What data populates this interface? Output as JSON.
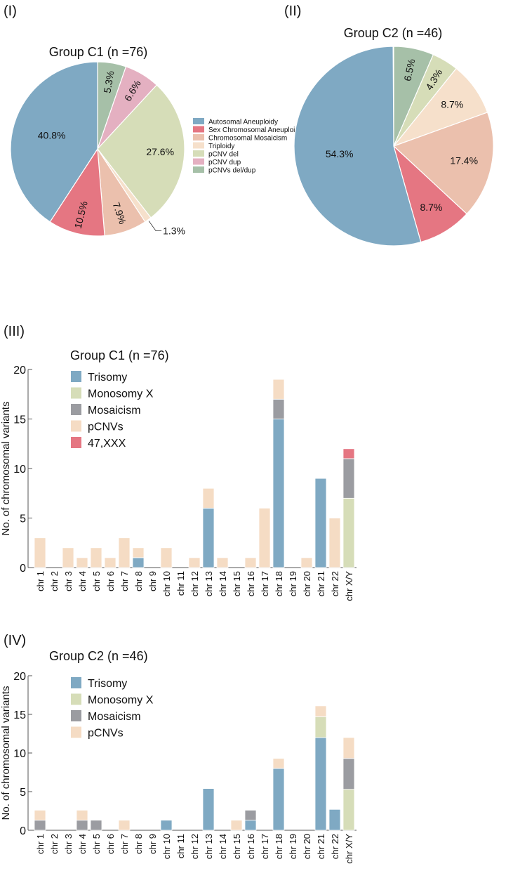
{
  "panel_labels": [
    "(I)",
    "(II)",
    "(III)",
    "(IV)"
  ],
  "colors": {
    "autosomal": "#7FA9C3",
    "sex": "#E57682",
    "mosaic_pie": "#EBC0AD",
    "triploidy": "#F6E0CB",
    "pcnv_del": "#D6DDB8",
    "pcnv_dup": "#E4B0C1",
    "pcnv_deldup": "#A6C0A8",
    "mosaic_bar": "#9B9CA1",
    "pcnv_bar": "#F5DCC4",
    "monox": "#D6DDB8",
    "xxx": "#E57682"
  },
  "chart_data": [
    {
      "type": "pie",
      "title": "Group C1 (n =76)",
      "slices": [
        {
          "label": "pCNVs del/dup",
          "value": 5.3,
          "text": "5.3%",
          "color": "#A6C0A8"
        },
        {
          "label": "pCNV dup",
          "value": 6.6,
          "text": "6.6%",
          "color": "#E4B0C1"
        },
        {
          "label": "pCNV del",
          "value": 27.6,
          "text": "27.6%",
          "color": "#D6DDB8"
        },
        {
          "label": "Triploidy",
          "value": 1.3,
          "text": "1.3%",
          "color": "#F6E0CB"
        },
        {
          "label": "Chromosomal Mosaicism",
          "value": 7.9,
          "text": "7.9%",
          "color": "#EBC0AD"
        },
        {
          "label": "Sex Chromosomal Aneuploidy",
          "value": 10.5,
          "text": "10.5%",
          "color": "#E57682"
        },
        {
          "label": "Autosomal Aneuploidy",
          "value": 40.8,
          "text": "40.8%",
          "color": "#7FA9C3"
        }
      ],
      "legend": [
        "Autosomal Aneuploidy",
        "Sex Chromosomal Aneuploidy",
        "Chromosomal Mosaicism",
        "Triploidy",
        "pCNV del",
        "pCNV dup",
        "pCNVs del/dup"
      ],
      "legend_colors": [
        "#7FA9C3",
        "#E57682",
        "#EBC0AD",
        "#F6E0CB",
        "#D6DDB8",
        "#E4B0C1",
        "#A6C0A8"
      ],
      "legend_position": "right"
    },
    {
      "type": "pie",
      "title": "Group C2 (n =46)",
      "slices": [
        {
          "label": "pCNVs del/dup",
          "value": 6.5,
          "text": "6.5%",
          "color": "#A6C0A8"
        },
        {
          "label": "pCNV del",
          "value": 4.3,
          "text": "4.3%",
          "color": "#D6DDB8"
        },
        {
          "label": "Triploidy",
          "value": 8.7,
          "text": "8.7%",
          "color": "#F6E0CB"
        },
        {
          "label": "Chromosomal Mosaicism",
          "value": 17.4,
          "text": "17.4%",
          "color": "#EBC0AD"
        },
        {
          "label": "Sex Chromosomal Aneuploidy",
          "value": 8.7,
          "text": "8.7%",
          "color": "#E57682"
        },
        {
          "label": "Autosomal Aneuploidy",
          "value": 54.3,
          "text": "54.3%",
          "color": "#7FA9C3"
        }
      ]
    },
    {
      "type": "bar",
      "stacked": true,
      "title": "Group C1 (n =76)",
      "ylabel": "No. of chromosomal variants",
      "ylim": [
        0,
        20
      ],
      "yticks": [
        0,
        5,
        10,
        15,
        20
      ],
      "categories": [
        "chr 1",
        "chr 2",
        "chr 3",
        "chr 4",
        "chr 5",
        "chr 6",
        "chr 7",
        "chr 8",
        "chr 9",
        "chr 10",
        "chr 11",
        "chr 12",
        "chr 13",
        "chr 14",
        "chr 15",
        "chr 16",
        "chr 17",
        "chr 18",
        "chr 19",
        "chr 20",
        "chr 21",
        "chr 22",
        "chr X/Y"
      ],
      "series": [
        {
          "name": "Trisomy",
          "color": "#7FA9C3",
          "values": [
            0,
            0,
            0,
            0,
            0,
            0,
            0,
            1,
            0,
            0,
            0,
            0,
            6,
            0,
            0,
            0,
            0,
            15,
            0,
            0,
            9,
            0,
            0
          ]
        },
        {
          "name": "Monosomy X",
          "color": "#D6DDB8",
          "values": [
            0,
            0,
            0,
            0,
            0,
            0,
            0,
            0,
            0,
            0,
            0,
            0,
            0,
            0,
            0,
            0,
            0,
            0,
            0,
            0,
            0,
            0,
            7
          ]
        },
        {
          "name": "Mosaicism",
          "color": "#9B9CA1",
          "values": [
            0,
            0,
            0,
            0,
            0,
            0,
            0,
            0,
            0,
            0,
            0,
            0,
            0,
            0,
            0,
            0,
            0,
            2,
            0,
            0,
            0,
            0,
            4
          ]
        },
        {
          "name": "pCNVs",
          "color": "#F5DCC4",
          "values": [
            3,
            0,
            2,
            1,
            2,
            1,
            3,
            1,
            0,
            2,
            0,
            1,
            2,
            1,
            0,
            1,
            6,
            2,
            0,
            1,
            0,
            5,
            0
          ]
        },
        {
          "name": "47,XXX",
          "color": "#E57682",
          "values": [
            0,
            0,
            0,
            0,
            0,
            0,
            0,
            0,
            0,
            0,
            0,
            0,
            0,
            0,
            0,
            0,
            0,
            0,
            0,
            0,
            0,
            0,
            1
          ]
        }
      ],
      "legend_position": "top-left"
    },
    {
      "type": "bar",
      "stacked": true,
      "title": "Group C2 (n =46)",
      "ylabel": "No. of chromosomal variants",
      "ylim": [
        0,
        20
      ],
      "yticks": [
        0,
        5,
        10,
        15,
        20
      ],
      "categories": [
        "chr 1",
        "chr 2",
        "chr 3",
        "chr 4",
        "chr 5",
        "chr 6",
        "chr 7",
        "chr 8",
        "chr 9",
        "chr 10",
        "chr 11",
        "chr 12",
        "chr 13",
        "chr 14",
        "chr 15",
        "chr 16",
        "chr 17",
        "chr 18",
        "chr 19",
        "chr 20",
        "chr 21",
        "chr 22",
        "chr X/Y"
      ],
      "series": [
        {
          "name": "Trisomy",
          "color": "#7FA9C3",
          "values": [
            0,
            0,
            0,
            0,
            0,
            0,
            0,
            0,
            0,
            1.3,
            0,
            0,
            5.4,
            0,
            0,
            1.3,
            0,
            8,
            0,
            0,
            12,
            2.7,
            0
          ]
        },
        {
          "name": "Monosomy X",
          "color": "#D6DDB8",
          "values": [
            0,
            0,
            0,
            0,
            0,
            0,
            0,
            0,
            0,
            0,
            0,
            0,
            0,
            0,
            0,
            0,
            0,
            0,
            0,
            0,
            2.7,
            0,
            5.3
          ]
        },
        {
          "name": "Mosaicism",
          "color": "#9B9CA1",
          "values": [
            1.3,
            0,
            0,
            1.3,
            1.3,
            0,
            0,
            0,
            0,
            0,
            0,
            0,
            0,
            0,
            0,
            1.3,
            0,
            0,
            0,
            0,
            0,
            0,
            4
          ]
        },
        {
          "name": "pCNVs",
          "color": "#F5DCC4",
          "values": [
            1.3,
            0,
            0,
            1.3,
            0,
            0,
            1.3,
            0,
            0,
            0,
            0,
            0,
            0,
            0,
            1.3,
            0,
            0,
            1.3,
            0,
            0,
            1.4,
            0,
            2.7
          ]
        }
      ],
      "legend_position": "top-left"
    }
  ]
}
